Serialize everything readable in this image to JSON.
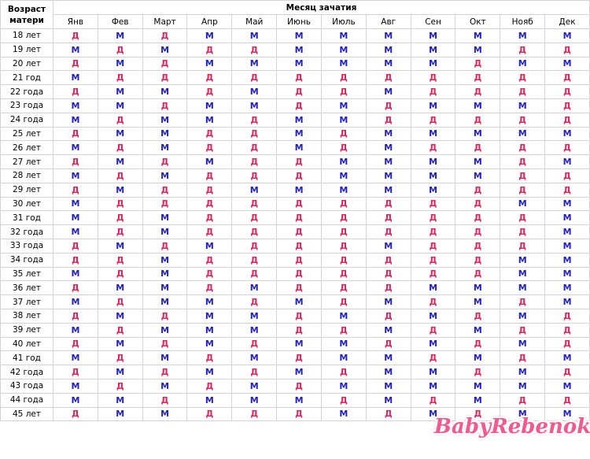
{
  "header": {
    "age_label_line1": "Возраст",
    "age_label_line2": "матери",
    "month_label": "Месяц зачатия"
  },
  "months": [
    "Янв",
    "Фев",
    "Март",
    "Апр",
    "Май",
    "Июнь",
    "Июль",
    "Авг",
    "Сен",
    "Окт",
    "Нояб",
    "Дек"
  ],
  "cell_colors": {
    "М": "#2020c8",
    "Д": "#e3245a"
  },
  "rows": [
    {
      "age": "18 лет",
      "cells": [
        "Д",
        "М",
        "Д",
        "М",
        "М",
        "М",
        "М",
        "М",
        "М",
        "М",
        "М",
        "М"
      ]
    },
    {
      "age": "19 лет",
      "cells": [
        "М",
        "Д",
        "М",
        "Д",
        "Д",
        "М",
        "М",
        "М",
        "М",
        "М",
        "Д",
        "Д"
      ]
    },
    {
      "age": "20 лет",
      "cells": [
        "Д",
        "М",
        "Д",
        "М",
        "М",
        "М",
        "М",
        "М",
        "М",
        "Д",
        "М",
        "М"
      ]
    },
    {
      "age": "21 год",
      "cells": [
        "М",
        "Д",
        "Д",
        "Д",
        "Д",
        "Д",
        "Д",
        "Д",
        "Д",
        "Д",
        "Д",
        "Д"
      ]
    },
    {
      "age": "22 года",
      "cells": [
        "Д",
        "М",
        "М",
        "Д",
        "М",
        "Д",
        "Д",
        "М",
        "Д",
        "Д",
        "Д",
        "Д"
      ]
    },
    {
      "age": "23 года",
      "cells": [
        "М",
        "М",
        "Д",
        "М",
        "М",
        "Д",
        "М",
        "Д",
        "М",
        "М",
        "М",
        "Д"
      ]
    },
    {
      "age": "24 года",
      "cells": [
        "М",
        "Д",
        "М",
        "М",
        "Д",
        "М",
        "М",
        "Д",
        "Д",
        "Д",
        "Д",
        "Д"
      ]
    },
    {
      "age": "25 лет",
      "cells": [
        "Д",
        "М",
        "М",
        "Д",
        "Д",
        "М",
        "Д",
        "М",
        "М",
        "М",
        "М",
        "М"
      ]
    },
    {
      "age": "26 лет",
      "cells": [
        "М",
        "Д",
        "М",
        "Д",
        "Д",
        "М",
        "Д",
        "М",
        "Д",
        "Д",
        "Д",
        "Д"
      ]
    },
    {
      "age": "27 лет",
      "cells": [
        "Д",
        "М",
        "Д",
        "М",
        "Д",
        "Д",
        "М",
        "М",
        "М",
        "М",
        "Д",
        "М"
      ]
    },
    {
      "age": "28 лет",
      "cells": [
        "М",
        "Д",
        "М",
        "Д",
        "Д",
        "Д",
        "М",
        "М",
        "М",
        "М",
        "Д",
        "Д"
      ]
    },
    {
      "age": "29 лет",
      "cells": [
        "Д",
        "М",
        "Д",
        "Д",
        "М",
        "М",
        "М",
        "М",
        "М",
        "Д",
        "Д",
        "Д"
      ]
    },
    {
      "age": "30 лет",
      "cells": [
        "М",
        "Д",
        "Д",
        "Д",
        "Д",
        "Д",
        "Д",
        "Д",
        "Д",
        "Д",
        "М",
        "М"
      ]
    },
    {
      "age": "31 год",
      "cells": [
        "М",
        "Д",
        "М",
        "Д",
        "Д",
        "Д",
        "Д",
        "Д",
        "Д",
        "Д",
        "Д",
        "М"
      ]
    },
    {
      "age": "32 года",
      "cells": [
        "М",
        "Д",
        "М",
        "Д",
        "Д",
        "Д",
        "Д",
        "Д",
        "Д",
        "Д",
        "Д",
        "М"
      ]
    },
    {
      "age": "33 года",
      "cells": [
        "Д",
        "М",
        "Д",
        "М",
        "Д",
        "Д",
        "Д",
        "М",
        "Д",
        "Д",
        "Д",
        "М"
      ]
    },
    {
      "age": "34 года",
      "cells": [
        "Д",
        "Д",
        "М",
        "Д",
        "Д",
        "Д",
        "Д",
        "Д",
        "Д",
        "Д",
        "М",
        "М"
      ]
    },
    {
      "age": "35 лет",
      "cells": [
        "М",
        "Д",
        "М",
        "Д",
        "Д",
        "Д",
        "Д",
        "Д",
        "Д",
        "Д",
        "М",
        "М"
      ]
    },
    {
      "age": "36 лет",
      "cells": [
        "Д",
        "М",
        "М",
        "Д",
        "М",
        "Д",
        "Д",
        "Д",
        "М",
        "М",
        "М",
        "М"
      ]
    },
    {
      "age": "37 лет",
      "cells": [
        "М",
        "Д",
        "М",
        "М",
        "Д",
        "М",
        "Д",
        "М",
        "Д",
        "М",
        "Д",
        "М"
      ]
    },
    {
      "age": "38 лет",
      "cells": [
        "Д",
        "М",
        "Д",
        "М",
        "М",
        "Д",
        "М",
        "Д",
        "М",
        "Д",
        "М",
        "Д"
      ]
    },
    {
      "age": "39 лет",
      "cells": [
        "М",
        "Д",
        "М",
        "М",
        "М",
        "Д",
        "Д",
        "М",
        "Д",
        "М",
        "Д",
        "Д"
      ]
    },
    {
      "age": "40 лет",
      "cells": [
        "Д",
        "М",
        "Д",
        "М",
        "Д",
        "М",
        "М",
        "Д",
        "М",
        "Д",
        "М",
        "Д"
      ]
    },
    {
      "age": "41 год",
      "cells": [
        "М",
        "Д",
        "М",
        "Д",
        "М",
        "Д",
        "М",
        "М",
        "Д",
        "М",
        "Д",
        "М"
      ]
    },
    {
      "age": "42 года",
      "cells": [
        "Д",
        "М",
        "Д",
        "М",
        "Д",
        "М",
        "Д",
        "М",
        "М",
        "Д",
        "М",
        "Д"
      ]
    },
    {
      "age": "43 года",
      "cells": [
        "М",
        "Д",
        "М",
        "Д",
        "М",
        "Д",
        "М",
        "М",
        "М",
        "М",
        "М",
        "М"
      ]
    },
    {
      "age": "44 года",
      "cells": [
        "М",
        "М",
        "Д",
        "М",
        "М",
        "М",
        "Д",
        "М",
        "Д",
        "М",
        "Д",
        "Д"
      ]
    },
    {
      "age": "45 лет",
      "cells": [
        "Д",
        "М",
        "М",
        "Д",
        "Д",
        "Д",
        "М",
        "Д",
        "М",
        "Д",
        "М",
        "М"
      ]
    }
  ],
  "watermark": "BabyRebenok"
}
